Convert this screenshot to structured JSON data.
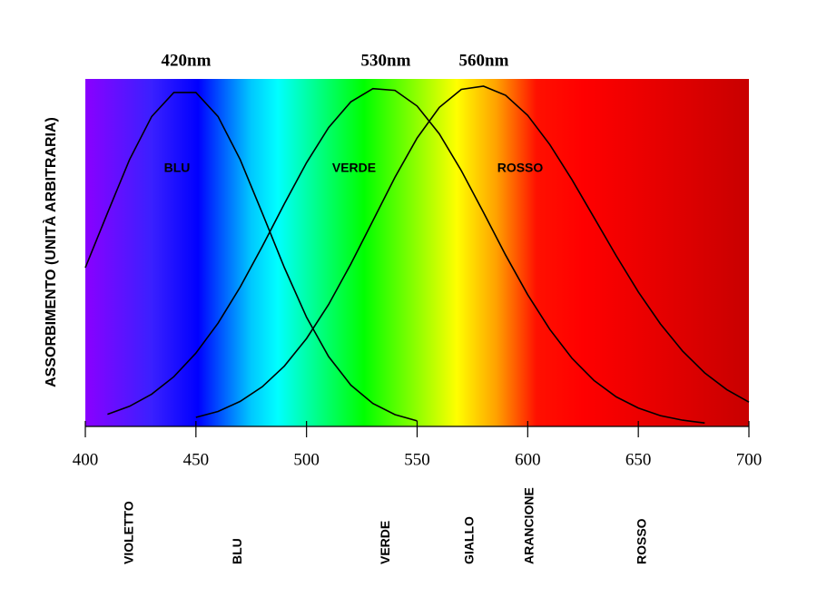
{
  "chart_data": {
    "type": "line",
    "annotations": [
      "420nm",
      "530nm",
      "560nm"
    ],
    "ylabel": "ASSORBIMENTO (UNITÀ ARBITRARIA)",
    "x": [
      400,
      410,
      420,
      430,
      440,
      450,
      460,
      470,
      480,
      490,
      500,
      510,
      520,
      530,
      540,
      550,
      560,
      570,
      580,
      590,
      600,
      610,
      620,
      630,
      640,
      650,
      660,
      670,
      680,
      690,
      700
    ],
    "series": [
      {
        "name": "BLU",
        "color": "#000000",
        "values": [
          0.457,
          0.614,
          0.768,
          0.892,
          0.961,
          0.961,
          0.892,
          0.768,
          0.614,
          0.457,
          0.314,
          0.201,
          0.119,
          0.066,
          0.034,
          0.016,
          null,
          null,
          null,
          null,
          null,
          null,
          null,
          null,
          null,
          null,
          null,
          null,
          null,
          null,
          null
        ]
      },
      {
        "name": "VERDE",
        "color": "#000000",
        "values": [
          null,
          0.035,
          0.058,
          0.093,
          0.143,
          0.211,
          0.297,
          0.401,
          0.518,
          0.641,
          0.759,
          0.86,
          0.934,
          0.972,
          0.967,
          0.922,
          0.842,
          0.736,
          0.616,
          0.493,
          0.379,
          0.279,
          0.196,
          0.132,
          0.085,
          0.053,
          0.031,
          0.018,
          0.01,
          null,
          null
        ]
      },
      {
        "name": "ROSSO",
        "color": "#000000",
        "values": [
          null,
          null,
          null,
          null,
          null,
          0.026,
          0.043,
          0.072,
          0.114,
          0.174,
          0.253,
          0.351,
          0.467,
          0.592,
          0.717,
          0.83,
          0.918,
          0.97,
          0.979,
          0.953,
          0.895,
          0.811,
          0.71,
          0.601,
          0.491,
          0.387,
          0.295,
          0.217,
          0.154,
          0.106,
          0.07
        ]
      }
    ],
    "xlim": [
      400,
      700
    ],
    "xticks": [
      400,
      450,
      500,
      550,
      600,
      650,
      700
    ],
    "ylim": [
      0,
      1
    ],
    "color_bands": [
      {
        "label": "VIOLETTO",
        "x": 420
      },
      {
        "label": "BLU",
        "x": 469
      },
      {
        "label": "VERDE",
        "x": 536
      },
      {
        "label": "GIALLO",
        "x": 574
      },
      {
        "label": "ARANCIONE",
        "x": 601
      },
      {
        "label": "ROSSO",
        "x": 652
      }
    ]
  }
}
